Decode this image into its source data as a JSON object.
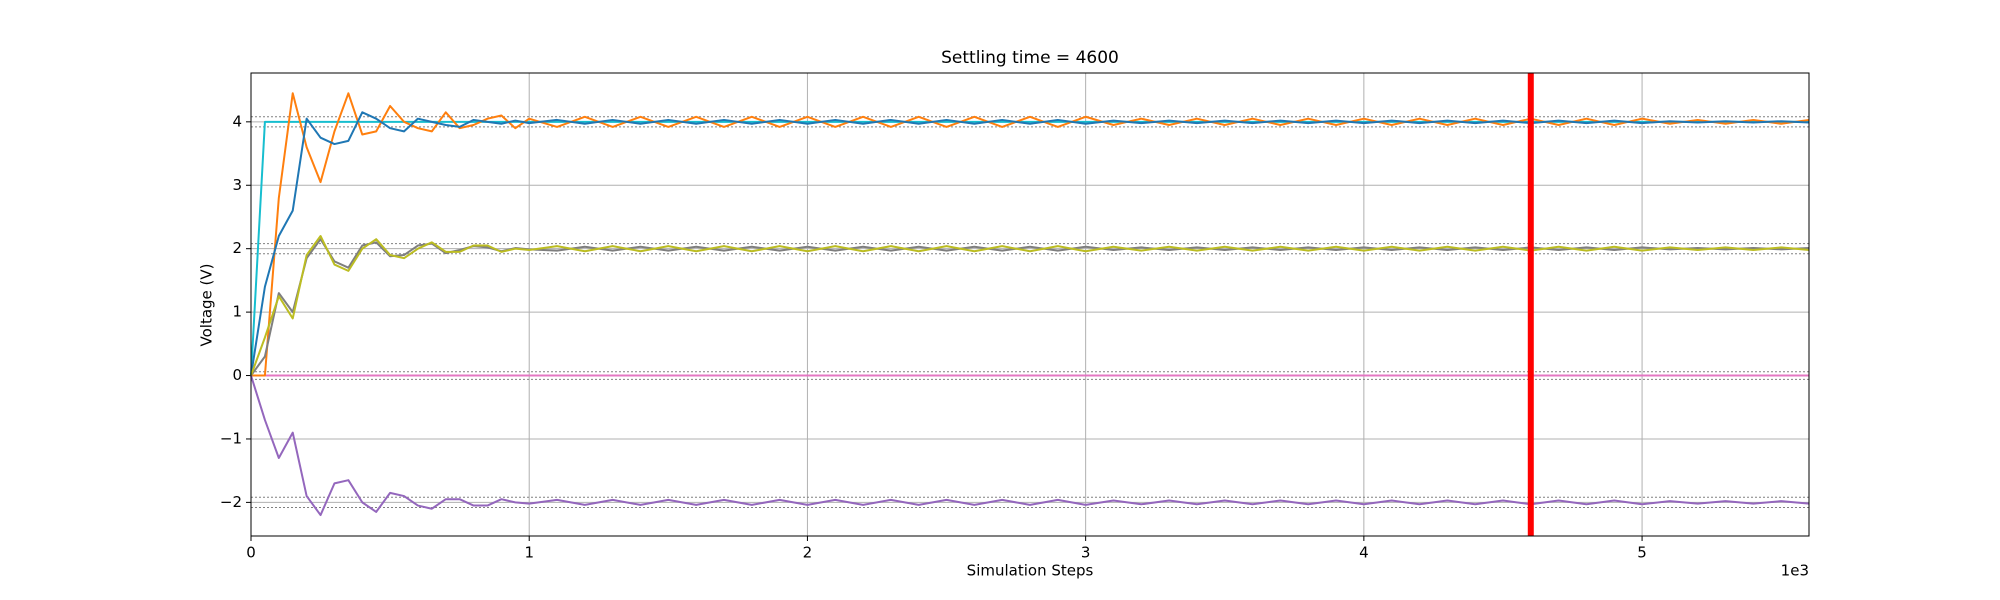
{
  "chart_data": {
    "type": "line",
    "title": "Settling time = 4600",
    "x_label": "Simulation Steps",
    "y_label": "Voltage (V)",
    "x_offset_label": "1e3",
    "xlim": [
      0,
      5600
    ],
    "ylim": [
      -2.53,
      4.77
    ],
    "xticks": [
      {
        "value": 0,
        "label": "0"
      },
      {
        "value": 1000,
        "label": "1"
      },
      {
        "value": 2000,
        "label": "2"
      },
      {
        "value": 3000,
        "label": "3"
      },
      {
        "value": 4000,
        "label": "4"
      },
      {
        "value": 5000,
        "label": "5"
      }
    ],
    "yticks": [
      {
        "value": -2,
        "label": "−2"
      },
      {
        "value": -1,
        "label": "−1"
      },
      0,
      1,
      2,
      3,
      4
    ],
    "grid": true,
    "settling_time": 4600,
    "settling_color": "#ff0000",
    "reference_lines": [
      4.08,
      3.92,
      2.08,
      1.92,
      0.06,
      -0.06,
      -1.92,
      -2.08
    ],
    "reference_color": "#808080",
    "x": [
      0,
      50,
      100,
      150,
      200,
      250,
      300,
      350,
      400,
      450,
      500,
      550,
      600,
      650,
      700,
      750,
      800,
      850,
      900,
      950,
      1000,
      1100,
      1200,
      1300,
      1400,
      1500,
      1600,
      1700,
      1800,
      1900,
      2000,
      2100,
      2200,
      2300,
      2400,
      2500,
      2600,
      2700,
      2800,
      2900,
      3000,
      3100,
      3200,
      3300,
      3400,
      3500,
      3600,
      3700,
      3800,
      3900,
      4000,
      4100,
      4200,
      4300,
      4400,
      4500,
      4600,
      4700,
      4800,
      4900,
      5000,
      5100,
      5200,
      5300,
      5400,
      5500,
      5600
    ],
    "series": [
      {
        "color": "#e377c2",
        "values": [
          0,
          0,
          0,
          0,
          0,
          0,
          0,
          0,
          0,
          0,
          0,
          0,
          0,
          0,
          0,
          0,
          0,
          0,
          0,
          0,
          0,
          0,
          0,
          0,
          0,
          0,
          0,
          0,
          0,
          0,
          0,
          0,
          0,
          0,
          0,
          0,
          0,
          0,
          0,
          0,
          0,
          0,
          0,
          0,
          0,
          0,
          0,
          0,
          0,
          0,
          0,
          0,
          0,
          0,
          0,
          0,
          0,
          0,
          0,
          0,
          0,
          0,
          0,
          0,
          0,
          0,
          0
        ]
      },
      {
        "color": "#17becf",
        "values": [
          0,
          4,
          4,
          4,
          4,
          4,
          4,
          4,
          4,
          4,
          4,
          4,
          4,
          4,
          4,
          4,
          4,
          4,
          4,
          4,
          4,
          4,
          4,
          4,
          4,
          4,
          4,
          4,
          4,
          4,
          4,
          4,
          4,
          4,
          4,
          4,
          4,
          4,
          4,
          4,
          4,
          4,
          4,
          4,
          4,
          4,
          4,
          4,
          4,
          4,
          4,
          4,
          4,
          4,
          4,
          4,
          4,
          4,
          4,
          4,
          4,
          4,
          4,
          4,
          4,
          4,
          4
        ]
      },
      {
        "color": "#ff7f0e",
        "values": [
          0,
          0,
          2.8,
          4.45,
          3.6,
          3.05,
          3.85,
          4.45,
          3.8,
          3.85,
          4.25,
          4.0,
          3.9,
          3.85,
          4.15,
          3.9,
          3.95,
          4.05,
          4.1,
          3.9,
          4.05,
          3.92,
          4.08,
          3.92,
          4.08,
          3.92,
          4.08,
          3.92,
          4.08,
          3.92,
          4.08,
          3.92,
          4.08,
          3.92,
          4.08,
          3.92,
          4.08,
          3.92,
          4.08,
          3.92,
          4.08,
          3.95,
          4.05,
          3.95,
          4.05,
          3.95,
          4.05,
          3.95,
          4.05,
          3.95,
          4.05,
          3.95,
          4.05,
          3.95,
          4.05,
          3.95,
          4.05,
          3.95,
          4.05,
          3.95,
          4.05,
          3.97,
          4.03,
          3.97,
          4.03,
          3.97,
          4.03
        ]
      },
      {
        "color": "#1f77b4",
        "values": [
          0,
          1.4,
          2.2,
          2.6,
          4.05,
          3.75,
          3.65,
          3.7,
          4.15,
          4.05,
          3.9,
          3.85,
          4.05,
          4.0,
          3.95,
          3.92,
          4.03,
          4.0,
          3.97,
          4.02,
          3.98,
          4.03,
          3.97,
          4.03,
          3.97,
          4.03,
          3.97,
          4.03,
          3.97,
          4.03,
          3.97,
          4.03,
          3.97,
          4.03,
          3.97,
          4.03,
          3.97,
          4.03,
          3.97,
          4.03,
          3.97,
          4.02,
          3.98,
          4.02,
          3.98,
          4.02,
          3.98,
          4.02,
          3.98,
          4.02,
          3.98,
          4.02,
          3.98,
          4.02,
          3.98,
          4.02,
          3.98,
          4.02,
          3.98,
          4.02,
          3.98,
          4.01,
          3.99,
          4.01,
          3.99,
          4.01,
          3.99
        ]
      },
      {
        "color": "#7f7f7f",
        "values": [
          0,
          0.3,
          1.3,
          1.0,
          1.85,
          2.15,
          1.8,
          1.7,
          2.05,
          2.1,
          1.88,
          1.9,
          2.05,
          2.08,
          1.93,
          1.98,
          2.04,
          2.02,
          1.96,
          2.01,
          1.99,
          1.97,
          2.03,
          1.97,
          2.03,
          1.97,
          2.03,
          1.97,
          2.03,
          1.97,
          2.03,
          1.97,
          2.03,
          1.97,
          2.03,
          1.97,
          2.03,
          1.97,
          2.03,
          1.97,
          2.03,
          1.98,
          2.02,
          1.98,
          2.02,
          1.98,
          2.02,
          1.98,
          2.02,
          1.98,
          2.02,
          1.98,
          2.02,
          1.98,
          2.02,
          1.98,
          2.02,
          1.98,
          2.02,
          1.98,
          2.02,
          1.99,
          2.01,
          1.99,
          2.01,
          1.99,
          2.01
        ]
      },
      {
        "color": "#bcbd22",
        "values": [
          0,
          0.6,
          1.25,
          0.9,
          1.9,
          2.2,
          1.75,
          1.65,
          2.0,
          2.15,
          1.9,
          1.85,
          2.0,
          2.1,
          1.95,
          1.95,
          2.05,
          2.05,
          1.95,
          2.0,
          1.98,
          2.04,
          1.96,
          2.04,
          1.96,
          2.04,
          1.96,
          2.04,
          1.96,
          2.04,
          1.96,
          2.04,
          1.96,
          2.04,
          1.96,
          2.04,
          1.96,
          2.04,
          1.96,
          2.04,
          1.96,
          2.03,
          1.97,
          2.03,
          1.97,
          2.03,
          1.97,
          2.03,
          1.97,
          2.03,
          1.97,
          2.03,
          1.97,
          2.03,
          1.97,
          2.03,
          1.97,
          2.03,
          1.97,
          2.03,
          1.97,
          2.02,
          1.98,
          2.02,
          1.98,
          2.02,
          1.98
        ]
      },
      {
        "color": "#9467bd",
        "values": [
          0,
          -0.7,
          -1.3,
          -0.9,
          -1.9,
          -2.2,
          -1.7,
          -1.65,
          -2.0,
          -2.15,
          -1.85,
          -1.9,
          -2.05,
          -2.1,
          -1.95,
          -1.95,
          -2.05,
          -2.05,
          -1.95,
          -2.0,
          -2.02,
          -1.96,
          -2.04,
          -1.96,
          -2.04,
          -1.96,
          -2.04,
          -1.96,
          -2.04,
          -1.96,
          -2.04,
          -1.96,
          -2.04,
          -1.96,
          -2.04,
          -1.96,
          -2.04,
          -1.96,
          -2.04,
          -1.96,
          -2.04,
          -1.97,
          -2.03,
          -1.97,
          -2.03,
          -1.97,
          -2.03,
          -1.97,
          -2.03,
          -1.97,
          -2.03,
          -1.97,
          -2.03,
          -1.97,
          -2.03,
          -1.97,
          -2.03,
          -1.97,
          -2.03,
          -1.97,
          -2.03,
          -1.98,
          -2.02,
          -1.98,
          -2.02,
          -1.98,
          -2.02
        ]
      }
    ]
  }
}
